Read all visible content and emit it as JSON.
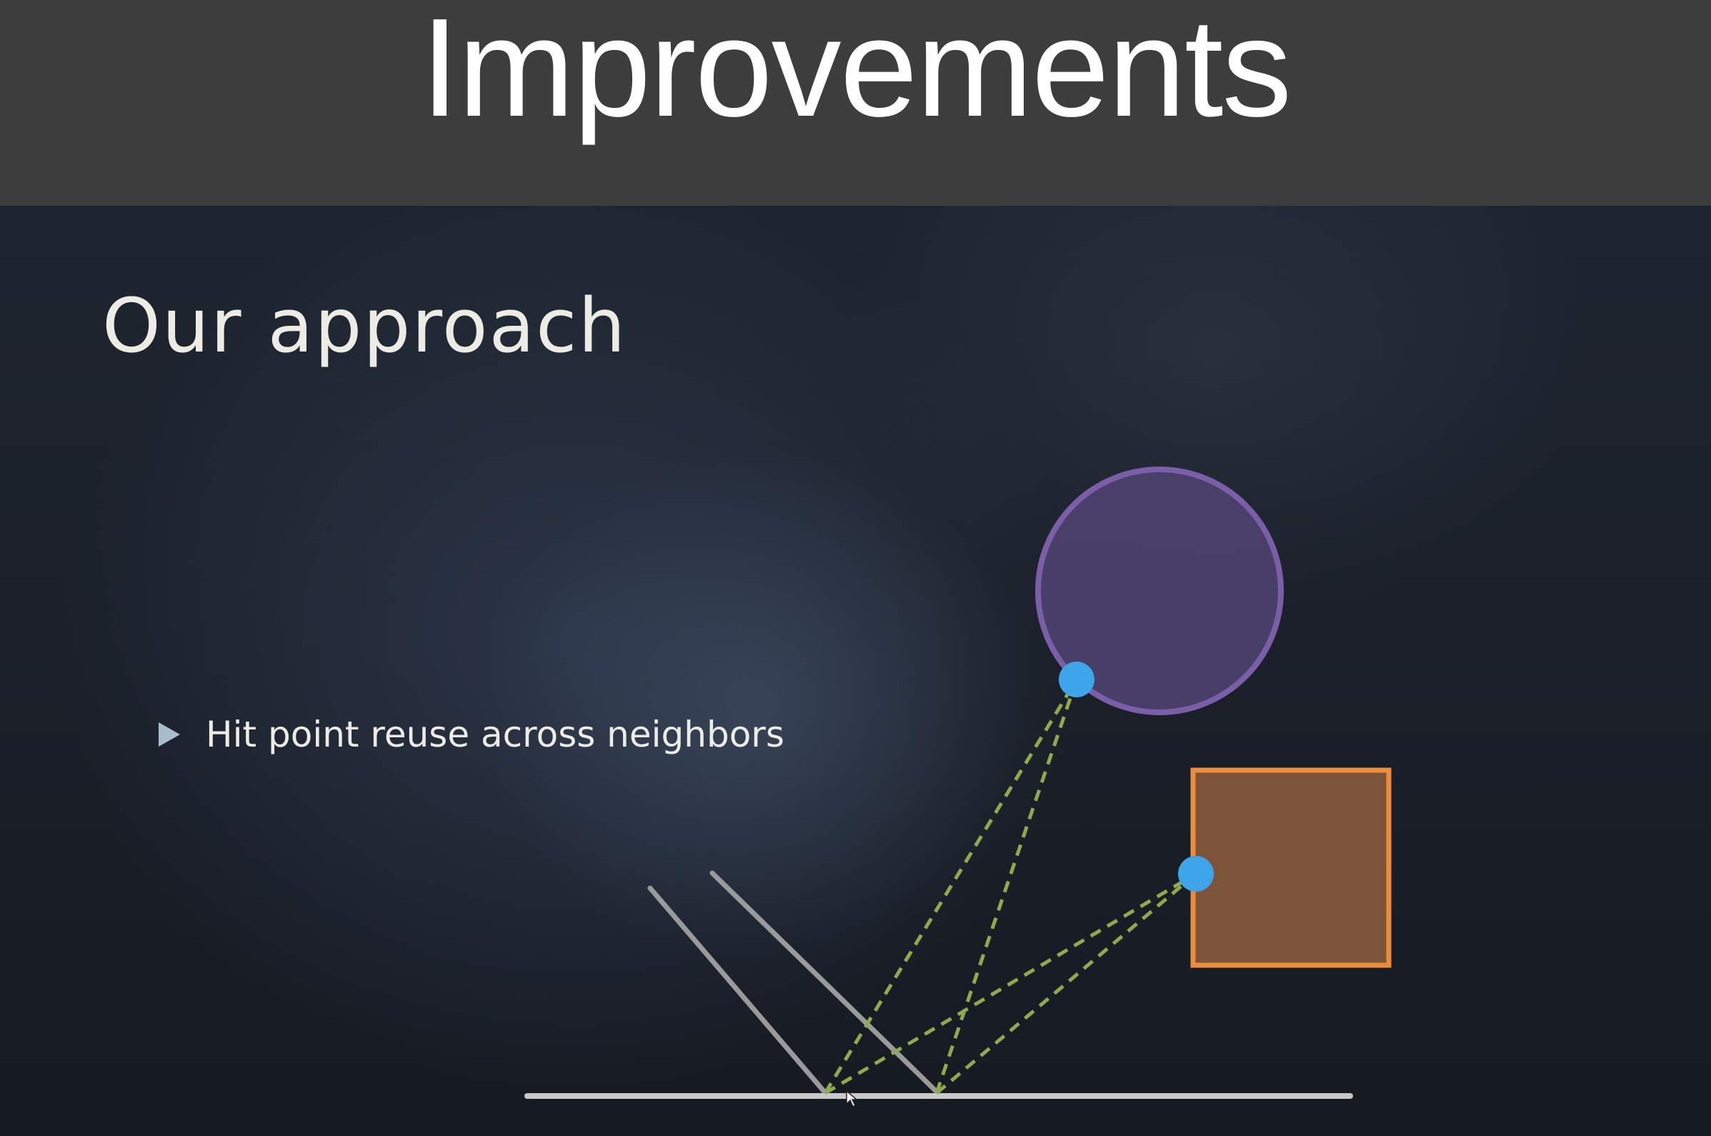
{
  "header": {
    "title": "Improvements"
  },
  "slide": {
    "heading": "Our approach",
    "bullets": [
      "Hit point reuse across neighbors"
    ]
  },
  "diagram": {
    "colors": {
      "sphere_fill": "#4e4370",
      "sphere_stroke": "#7a5fa8",
      "box_fill": "#83573a",
      "box_stroke": "#ee8c3e",
      "hit_point": "#3ea5ea",
      "ray": "#8faa4d",
      "surface": "#c8c8c8",
      "view_rays": "#9a9a9a"
    },
    "elements": [
      "sphere",
      "box",
      "hit-point-sphere",
      "hit-point-box",
      "ground-plane",
      "view-ray",
      "view-ray",
      "reused-rays"
    ]
  }
}
